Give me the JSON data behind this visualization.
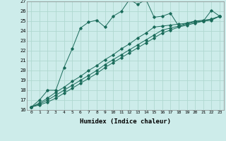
{
  "xlabel": "Humidex (Indice chaleur)",
  "ylabel": "",
  "xlim": [
    -0.5,
    23.5
  ],
  "ylim": [
    16,
    27
  ],
  "xticks": [
    0,
    1,
    2,
    3,
    4,
    5,
    6,
    7,
    8,
    9,
    10,
    11,
    12,
    13,
    14,
    15,
    16,
    17,
    18,
    19,
    20,
    21,
    22,
    23
  ],
  "yticks": [
    16,
    17,
    18,
    19,
    20,
    21,
    22,
    23,
    24,
    25,
    26,
    27
  ],
  "background_color": "#cdecea",
  "grid_color": "#b0d8d0",
  "line_color": "#1a6b5a",
  "series": [
    [
      16.3,
      17.0,
      18.0,
      18.0,
      20.3,
      22.2,
      24.3,
      24.9,
      25.1,
      24.4,
      25.5,
      26.0,
      27.2,
      26.7,
      27.2,
      25.4,
      25.5,
      25.8,
      24.5,
      24.8,
      25.0,
      25.0,
      26.1,
      25.5
    ],
    [
      16.3,
      16.7,
      17.2,
      17.8,
      18.3,
      18.9,
      19.4,
      20.0,
      20.5,
      21.1,
      21.6,
      22.2,
      22.7,
      23.3,
      23.8,
      24.4,
      24.5,
      24.6,
      24.7,
      24.8,
      25.0,
      25.1,
      25.2,
      25.5
    ],
    [
      16.3,
      16.6,
      17.0,
      17.5,
      18.0,
      18.5,
      19.0,
      19.5,
      20.0,
      20.6,
      21.1,
      21.6,
      22.1,
      22.6,
      23.1,
      23.6,
      24.1,
      24.3,
      24.5,
      24.7,
      24.9,
      25.0,
      25.2,
      25.5
    ],
    [
      16.3,
      16.5,
      16.8,
      17.2,
      17.7,
      18.2,
      18.7,
      19.2,
      19.7,
      20.3,
      20.8,
      21.3,
      21.8,
      22.3,
      22.8,
      23.3,
      23.8,
      24.1,
      24.4,
      24.6,
      24.8,
      25.0,
      25.1,
      25.5
    ]
  ]
}
